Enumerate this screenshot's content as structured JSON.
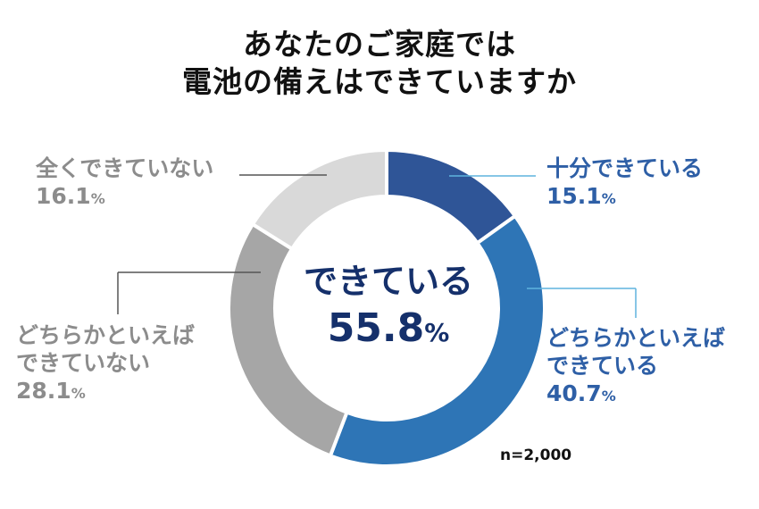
{
  "chart_data": {
    "type": "pie",
    "title_lines": [
      "あなたのご家庭では",
      "電池の備えはできていますか"
    ],
    "center": {
      "label": "できている",
      "value": "55.8",
      "unit": "%"
    },
    "sample_note": "n=2,000",
    "percent_sign": "%",
    "slices": [
      {
        "label_lines": [
          "十分できている"
        ],
        "value": 15.1,
        "value_text": "15.1",
        "color": "#2f5597",
        "label_color": "#2e5fa6"
      },
      {
        "label_lines": [
          "どちらかといえば",
          "できている"
        ],
        "value": 40.7,
        "value_text": "40.7",
        "color": "#2e75b6",
        "label_color": "#2e5fa6"
      },
      {
        "label_lines": [
          "どちらかといえば",
          "できていない"
        ],
        "value": 28.1,
        "value_text": "28.1",
        "color": "#a6a6a6",
        "label_color": "#8c8c8c"
      },
      {
        "label_lines": [
          "全くできていない"
        ],
        "value": 16.1,
        "value_text": "16.1",
        "color": "#d9d9d9",
        "label_color": "#8c8c8c"
      }
    ],
    "leader_color_blue": "#5fb3dd",
    "leader_color_gray": "#555555"
  }
}
